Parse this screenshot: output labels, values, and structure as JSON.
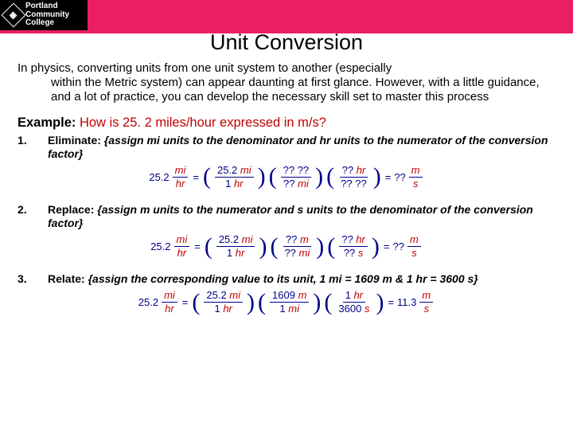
{
  "logo": {
    "l1": "Portland",
    "l2": "Community",
    "l3": "College"
  },
  "title": "Unit Conversion",
  "intro": {
    "line1": "In physics, converting units from one unit system to another (especially",
    "rest": "within the Metric system) can appear daunting at first glance. However, with a little guidance, and a lot of practice, you can develop the necessary skill set to master this process"
  },
  "example": {
    "label": "Example:",
    "question": "How is 25. 2 miles/hour expressed in m/s?"
  },
  "steps": [
    {
      "n": "1.",
      "title": "Eliminate:",
      "desc": "{assign mi units to the denominator and hr units to the numerator of the conversion factor}"
    },
    {
      "n": "2.",
      "title": "Replace:",
      "desc": "{assign m units to the numerator and s units to the denominator of the conversion factor}"
    },
    {
      "n": "3.",
      "title": "Relate:",
      "desc": "{assign the corresponding value to its unit, 1 mi = 1609 m & 1 hr = 3600 s}"
    }
  ],
  "eq": {
    "lead_val": "25.2",
    "lead_mi": "mi",
    "lead_hr": "hr",
    "f1_num_val": "25.2 ",
    "f1_num_unit": "mi",
    "f1_den_val": "1 ",
    "f1_den_unit": "hr",
    "qq": "?? ",
    "qq_alone": "?? ",
    "mi": "mi",
    "hr": "hr",
    "m": "m",
    "s": "s",
    "f3_num_val": "1609 ",
    "f3_den_val": "1 ",
    "f3b_num_val": "1 ",
    "f3b_den_val": "3600 ",
    "result_val": "11.3"
  },
  "colors": {
    "pink": "#e91e63",
    "red": "#c00000",
    "blue": "#00008b"
  }
}
